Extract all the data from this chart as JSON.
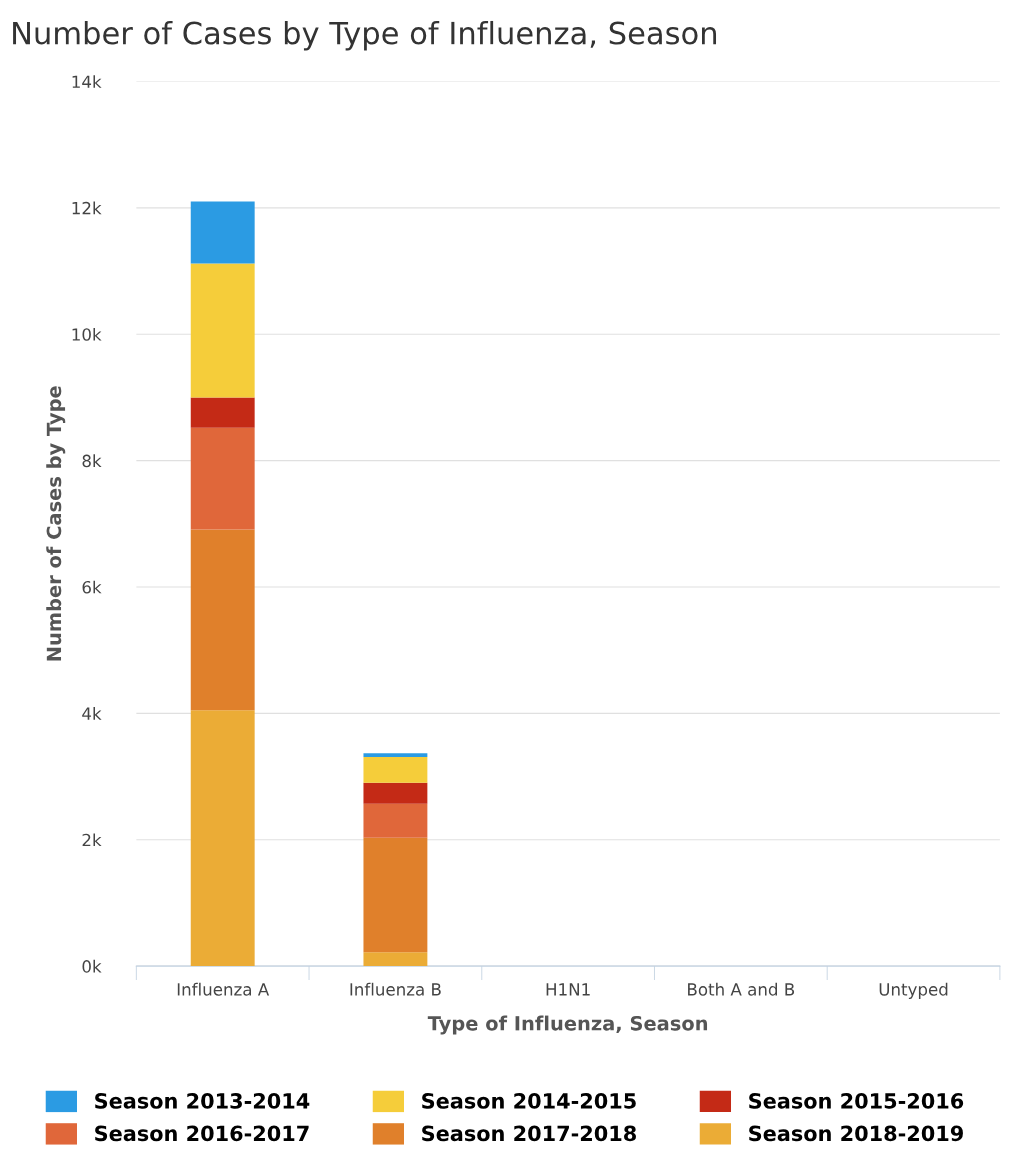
{
  "chart_data": {
    "type": "bar",
    "title": "Number of Cases by Type of Influenza, Season",
    "xlabel": "Type of Influenza, Season",
    "ylabel": "Number of Cases by Type",
    "categories": [
      "Influenza A",
      "Influenza B",
      "H1N1",
      "Both A and B",
      "Untyped"
    ],
    "stacked": true,
    "series": [
      {
        "name": "Season 2018-2019",
        "color": "#ebac36",
        "values": [
          4050,
          220,
          0,
          0,
          0
        ]
      },
      {
        "name": "Season 2017-2018",
        "color": "#e0802b",
        "values": [
          2860,
          1810,
          0,
          0,
          0
        ]
      },
      {
        "name": "Season 2016-2017",
        "color": "#e0673a",
        "values": [
          1610,
          540,
          0,
          0,
          0
        ]
      },
      {
        "name": "Season 2015-2016",
        "color": "#c42a16",
        "values": [
          480,
          330,
          0,
          0,
          0
        ]
      },
      {
        "name": "Season 2014-2015",
        "color": "#f5cd3a",
        "values": [
          2120,
          410,
          0,
          0,
          0
        ]
      },
      {
        "name": "Season 2013-2014",
        "color": "#2b9be3",
        "values": [
          980,
          60,
          0,
          0,
          0
        ]
      }
    ],
    "ylim": [
      0,
      14000
    ],
    "yticks": [
      {
        "value": 0,
        "label": "0k"
      },
      {
        "value": 2000,
        "label": "2k"
      },
      {
        "value": 4000,
        "label": "4k"
      },
      {
        "value": 6000,
        "label": "6k"
      },
      {
        "value": 8000,
        "label": "8k"
      },
      {
        "value": 10000,
        "label": "10k"
      },
      {
        "value": 12000,
        "label": "12k"
      },
      {
        "value": 14000,
        "label": "14k"
      }
    ],
    "grid": "y",
    "legend": "bottom"
  }
}
